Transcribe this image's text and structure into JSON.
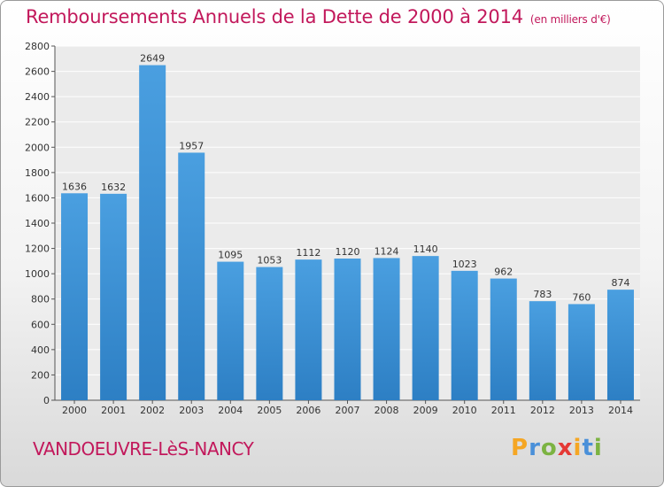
{
  "header": {
    "title": "Remboursements Annuels de la Dette de 2000 à 2014",
    "unit": "(en milliers d'€)"
  },
  "footer": {
    "city": "VANDOEUVRE-LèS-NANCY",
    "logo_letters": [
      "P",
      "r",
      "o",
      "x",
      "i",
      "t",
      "i"
    ],
    "logo_colors": [
      "#f5a623",
      "#4a90d9",
      "#7cb342",
      "#e53935",
      "#f5a623",
      "#4a90d9",
      "#7cb342"
    ]
  },
  "chart_data": {
    "type": "bar",
    "title": "Remboursements Annuels de la Dette de 2000 à 2014",
    "xlabel": "",
    "ylabel": "",
    "categories": [
      "2000",
      "2001",
      "2002",
      "2003",
      "2004",
      "2005",
      "2006",
      "2007",
      "2008",
      "2009",
      "2010",
      "2011",
      "2012",
      "2013",
      "2014"
    ],
    "values": [
      1636,
      1632,
      2649,
      1957,
      1095,
      1053,
      1112,
      1120,
      1124,
      1140,
      1023,
      962,
      783,
      760,
      874
    ],
    "ylim": [
      0,
      2800
    ],
    "yticks": [
      0,
      200,
      400,
      600,
      800,
      1000,
      1200,
      1400,
      1600,
      1800,
      2000,
      2200,
      2400,
      2600,
      2800
    ],
    "grid": true,
    "bar_color": "#4a9fe0",
    "bar_color_dark": "#2d7fc4"
  }
}
